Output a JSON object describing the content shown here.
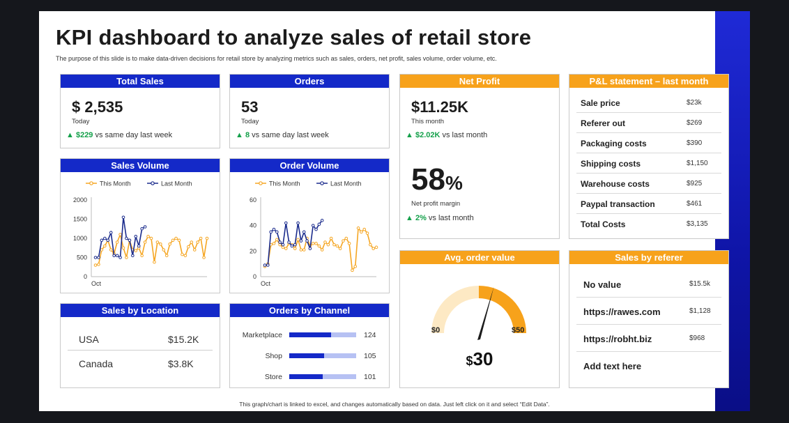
{
  "title": "KPI dashboard to analyze sales of retail store",
  "subtitle": "The purpose of this slide is to make data-driven decisions for retail store by analyzing metrics such as sales, orders, net profit, sales volume, order volume, etc.",
  "footer": "This graph/chart is linked to excel, and changes automatically based on data. Just left click on it and select “Edit Data”.",
  "colors": {
    "blue": "#1429c8",
    "orange": "#f7a21b",
    "green": "#14a04a",
    "navy_series": "#1a2b8c",
    "band": "#0f15a8"
  },
  "total_sales": {
    "header": "Total Sales",
    "value": "$ 2,535",
    "caption": "Today",
    "arrow": "▲",
    "delta": "$229",
    "compare": "vs same day last week"
  },
  "orders": {
    "header": "Orders",
    "value": "53",
    "caption": "Today",
    "arrow": "▲",
    "delta": "8",
    "compare": "vs same day last week"
  },
  "net_profit": {
    "header": "Net Profit",
    "value": "$11.25K",
    "caption": "This month",
    "arrow": "▲",
    "delta": "$2.02K",
    "compare": "vs last month",
    "margin_value": "58",
    "margin_unit": "%",
    "margin_caption": "Net profit margin",
    "margin_delta": "2%",
    "margin_compare": "vs last month"
  },
  "pl_statement": {
    "header": "P&L statement – last month",
    "rows": [
      {
        "label": "Sale price",
        "value": "$23k"
      },
      {
        "label": "Referer out",
        "value": "$269"
      },
      {
        "label": "Packaging costs",
        "value": "$390"
      },
      {
        "label": "Shipping costs",
        "value": "$1,150"
      },
      {
        "label": "Warehouse costs",
        "value": "$925"
      },
      {
        "label": "Paypal transaction",
        "value": "$461"
      },
      {
        "label": "Total Costs",
        "value": "$3,135"
      }
    ]
  },
  "sales_volume_header": "Sales Volume",
  "order_volume_header": "Order Volume",
  "sales_location": {
    "header": "Sales by Location",
    "rows": [
      {
        "label": "USA",
        "value": "$15.2K"
      },
      {
        "label": "Canada",
        "value": "$3.8K"
      }
    ]
  },
  "orders_channel_header": "Orders by Channel",
  "avg_order": {
    "header": "Avg. order value",
    "min_label": "$0",
    "max_label": "$50",
    "value_symbol": "$",
    "value": "30"
  },
  "referer": {
    "header": "Sales by referer",
    "rows": [
      {
        "label": "No value",
        "value": "$15.5k"
      },
      {
        "label": "https://rawes.com",
        "value": "$1,128"
      },
      {
        "label": "https://robht.biz",
        "value": "$968"
      },
      {
        "label": "Add text  here",
        "value": ""
      }
    ]
  },
  "chart_data": [
    {
      "type": "line",
      "title": "Sales Volume",
      "xlabel": "Oct",
      "ylim": [
        0,
        2000
      ],
      "yticks": [
        0,
        500,
        1000,
        1500,
        2000
      ],
      "grid": false,
      "legend": "top",
      "series": [
        {
          "name": "This Month",
          "color": "#f5a623",
          "values": [
            300,
            320,
            700,
            800,
            950,
            700,
            600,
            900,
            1100,
            750,
            500,
            950,
            700,
            680,
            750,
            550,
            900,
            1050,
            1000,
            380,
            900,
            850,
            700,
            550,
            850,
            950,
            1000,
            950,
            580,
            550,
            780,
            900,
            700,
            900,
            1000,
            500,
            1000
          ]
        },
        {
          "name": "Last Month",
          "color": "#1a2b8c",
          "values": [
            500,
            500,
            950,
            1000,
            950,
            1150,
            550,
            550,
            500,
            1550,
            1000,
            950,
            550,
            1050,
            800,
            1250,
            1300
          ]
        }
      ]
    },
    {
      "type": "line",
      "title": "Order Volume",
      "xlabel": "Oct",
      "ylim": [
        0,
        60
      ],
      "yticks": [
        0,
        20,
        40,
        60
      ],
      "grid": false,
      "legend": "top",
      "series": [
        {
          "name": "This Month",
          "color": "#f5a623",
          "values": [
            8,
            10,
            25,
            26,
            29,
            25,
            23,
            22,
            26,
            25,
            22,
            29,
            21,
            21,
            30,
            24,
            26,
            26,
            24,
            21,
            27,
            25,
            30,
            25,
            24,
            22,
            28,
            30,
            26,
            5,
            8,
            38,
            35,
            37,
            34,
            25,
            22,
            23
          ]
        },
        {
          "name": "Last Month",
          "color": "#1a2b8c",
          "values": [
            9,
            9,
            35,
            37,
            35,
            27,
            25,
            42,
            27,
            24,
            25,
            42,
            28,
            35,
            28,
            22,
            40,
            37,
            41,
            44
          ]
        }
      ]
    },
    {
      "type": "bar",
      "title": "Orders by Channel",
      "orientation": "horizontal",
      "categories": [
        "Marketplace",
        "Shop",
        "Store"
      ],
      "values": [
        124,
        105,
        101
      ],
      "xlim": [
        0,
        200
      ]
    },
    {
      "type": "gauge",
      "title": "Avg. order value",
      "min": 0,
      "max": 50,
      "value": 30
    }
  ]
}
